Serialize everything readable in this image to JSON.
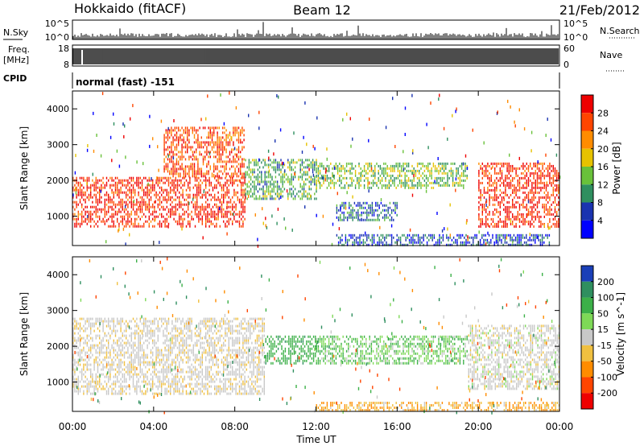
{
  "header": {
    "station": "Hokkaido (fitACF)",
    "beam": "Beam 12",
    "date": "21/Feb/2012"
  },
  "strips": {
    "nsky_label": "N.Sky",
    "nsearch_label": "N.Search",
    "noise_ticks": [
      "10^5",
      "10^0"
    ],
    "freq_label": "Freq.",
    "freq_unit": "[MHz]",
    "freq_ticks": [
      "18",
      "8"
    ],
    "nave_label": "Nave",
    "nave_ticks": [
      "60",
      "0"
    ],
    "cpid_label": "CPID",
    "cpid_text": "normal (fast) -151"
  },
  "chart_data": [
    {
      "type": "heatmap",
      "panel": "power",
      "xlabel": "Time UT",
      "ylabel": "Slant Range [km]",
      "x_ticks": [
        "00:00",
        "04:00",
        "08:00",
        "12:00",
        "16:00",
        "20:00",
        "00:00"
      ],
      "x_range_hours": [
        0,
        24
      ],
      "y_ticks": [
        1000,
        2000,
        3000,
        4000
      ],
      "ylim": [
        180,
        4500
      ],
      "colorbar": {
        "label": "Power [dB]",
        "ticks": [
          4,
          8,
          12,
          16,
          20,
          24,
          28
        ],
        "range": [
          0,
          32
        ],
        "colors": [
          "#0000ff",
          "#1a33b0",
          "#2f8f5f",
          "#69c13a",
          "#e6c200",
          "#ff8c00",
          "#ff4500",
          "#ee0000"
        ]
      },
      "echo_regions": [
        {
          "t": [
            0,
            8.5
          ],
          "range_km": [
            700,
            2100
          ],
          "level": 28
        },
        {
          "t": [
            4.5,
            8.5
          ],
          "range_km": [
            2100,
            3500
          ],
          "level": 26
        },
        {
          "t": [
            8.5,
            12
          ],
          "range_km": [
            1500,
            2600
          ],
          "level": 12
        },
        {
          "t": [
            12,
            19.5
          ],
          "range_km": [
            1800,
            2500
          ],
          "level": 14
        },
        {
          "t": [
            13,
            16
          ],
          "range_km": [
            900,
            1400
          ],
          "level": 8
        },
        {
          "t": [
            13,
            23.5
          ],
          "range_km": [
            200,
            500
          ],
          "level": 6
        },
        {
          "t": [
            20,
            24
          ],
          "range_km": [
            700,
            2500
          ],
          "level": 28
        }
      ]
    },
    {
      "type": "heatmap",
      "panel": "velocity",
      "xlabel": "Time UT",
      "ylabel": "Slant Range [km]",
      "x_ticks": [
        "00:00",
        "04:00",
        "08:00",
        "12:00",
        "16:00",
        "20:00",
        "00:00"
      ],
      "x_range_hours": [
        0,
        24
      ],
      "y_ticks": [
        1000,
        2000,
        3000,
        4000
      ],
      "ylim": [
        180,
        4500
      ],
      "colorbar": {
        "label": "Velocity [m s^-1]",
        "ticks": [
          200,
          100,
          50,
          15,
          -15,
          -50,
          -100,
          -200
        ],
        "colors": [
          "#1a3fb8",
          "#2f8f5f",
          "#3cb048",
          "#7ed957",
          "#c8c8c8",
          "#f0c040",
          "#ff8c00",
          "#ff4500",
          "#ee0000"
        ]
      },
      "echo_regions": [
        {
          "t": [
            0,
            9.5
          ],
          "range_km": [
            700,
            2800
          ],
          "velocity": -5
        },
        {
          "t": [
            9.5,
            12
          ],
          "range_km": [
            1500,
            2300
          ],
          "velocity": 60
        },
        {
          "t": [
            12,
            19.5
          ],
          "range_km": [
            1500,
            2300
          ],
          "velocity": 30
        },
        {
          "t": [
            19.5,
            24
          ],
          "range_km": [
            800,
            2600
          ],
          "velocity": 0
        },
        {
          "t": [
            12,
            24
          ],
          "range_km": [
            200,
            450
          ],
          "velocity": -30
        }
      ]
    }
  ]
}
